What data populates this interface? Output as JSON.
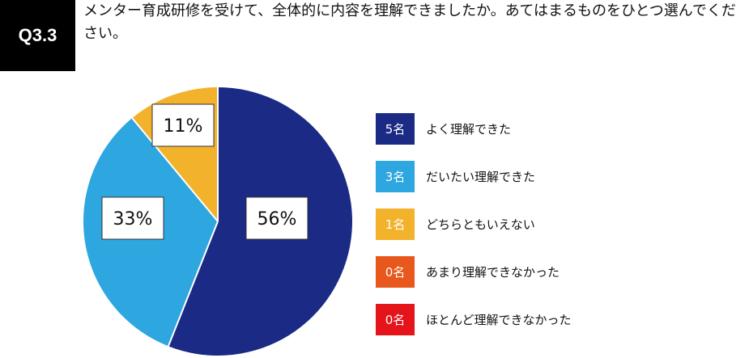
{
  "question": {
    "badge": "Q3.3",
    "text": "メンター育成研修を受けて、全体的に内容を理解できましたか。あてはまるものをひとつ選んでください。"
  },
  "chart_data": {
    "type": "pie",
    "slices": [
      {
        "label": "よく理解できた",
        "count": "5名",
        "value": 56,
        "display": "56%",
        "color": "#1a2a85"
      },
      {
        "label": "だいたい理解できた",
        "count": "3名",
        "value": 33,
        "display": "33%",
        "color": "#2ea6e0"
      },
      {
        "label": "どちらともいえない",
        "count": "1名",
        "value": 11,
        "display": "11%",
        "color": "#f3b22c"
      },
      {
        "label": "あまり理解できなかった",
        "count": "0名",
        "value": 0,
        "display": "",
        "color": "#e8581c"
      },
      {
        "label": "ほとんど理解できなかった",
        "count": "0名",
        "value": 0,
        "display": "",
        "color": "#e5141b"
      }
    ],
    "start": "12 o'clock",
    "direction": "clockwise",
    "legend_position": "right"
  }
}
